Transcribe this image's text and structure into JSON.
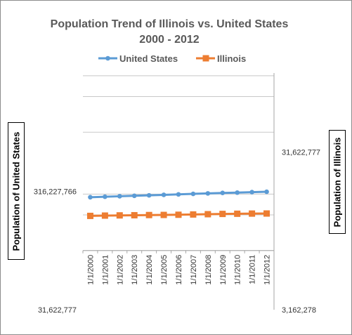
{
  "chart_data": {
    "type": "line",
    "title": "Population Trend of Illinois vs. United States",
    "subtitle": "2000 - 2012",
    "categories": [
      "1/1/2000",
      "1/1/2001",
      "1/1/2002",
      "1/1/2003",
      "1/1/2004",
      "1/1/2005",
      "1/1/2006",
      "1/1/2007",
      "1/1/2008",
      "1/1/2009",
      "1/1/2010",
      "1/1/2011",
      "1/1/2012"
    ],
    "y_scale": "log",
    "ylabel": "Population of United States",
    "y2label": "Population of Illinois",
    "ylim": [
      31622777,
      3162277660
    ],
    "y2lim": [
      3162278,
      100000000
    ],
    "y_tick_labels": [
      "31,622,777",
      "316,227,766"
    ],
    "y2_tick_labels": [
      "3,162,278",
      "31,622,777"
    ],
    "legend_position": "top",
    "grid": true,
    "series": [
      {
        "name": "United States",
        "axis": "left",
        "color": "#5b9bd5",
        "marker": "circle",
        "values": [
          282162411,
          284968955,
          287625193,
          290107933,
          292805298,
          295516599,
          298379912,
          301231207,
          304093966,
          306771529,
          308745538,
          311587816,
          313914040
        ]
      },
      {
        "name": "Illinois",
        "axis": "right",
        "color": "#ed7d31",
        "marker": "square",
        "values": [
          12434161,
          12488445,
          12525556,
          12556006,
          12589773,
          12609903,
          12643955,
          12695866,
          12747038,
          12796778,
          12830632,
          12859752,
          12875255
        ]
      }
    ]
  }
}
